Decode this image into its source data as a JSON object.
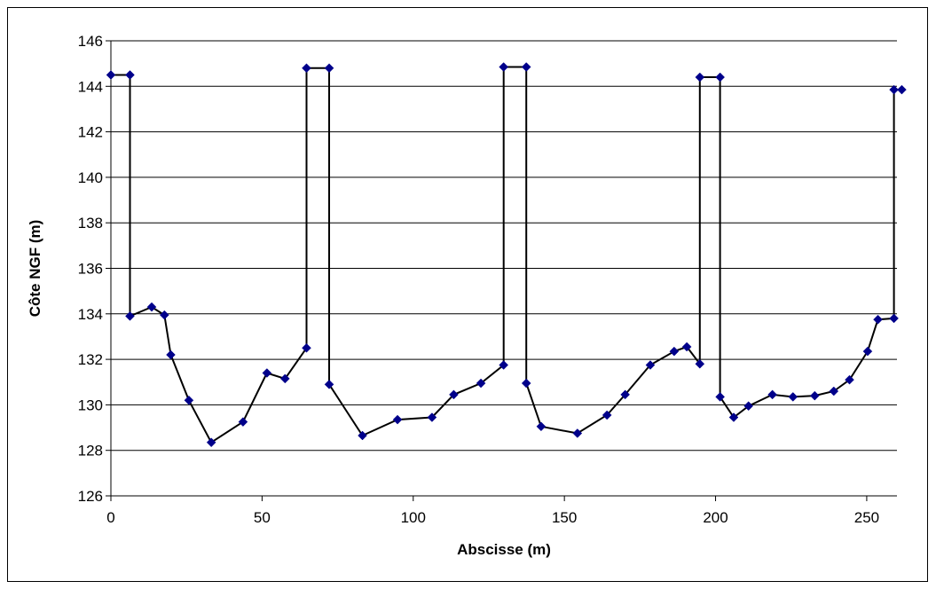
{
  "chart_data": {
    "type": "line",
    "title": "",
    "xlabel": "Abscisse (m)",
    "ylabel": "Côte NGF (m)",
    "xlim": [
      0,
      260
    ],
    "ylim": [
      126,
      146
    ],
    "xticks": [
      0,
      50,
      100,
      150,
      200,
      250
    ],
    "yticks": [
      126,
      128,
      130,
      132,
      134,
      136,
      138,
      140,
      142,
      144,
      146
    ],
    "grid": "horizontal",
    "legend": "none",
    "colors": {
      "marker": "#00008B",
      "line": "#000000",
      "grid": "#000000"
    },
    "series": [
      {
        "x": [
          0,
          6.3,
          6.3,
          13.5,
          17.7,
          19.8,
          25.8,
          33.2,
          43.7,
          51.6,
          57.6,
          64.7,
          64.7,
          72.2,
          72.2,
          83.2,
          94.8,
          106.2,
          113.4,
          122.4,
          129.9,
          129.9,
          137.4,
          137.4,
          142.3,
          154.3,
          164.1,
          170.1,
          178.4,
          186.3,
          190.5,
          194.8,
          194.8,
          201.5,
          201.5,
          206.0,
          210.9,
          218.8,
          225.6,
          232.8,
          239.1,
          244.3,
          250.3,
          253.7,
          259.0,
          259.0,
          261.6
        ],
        "y": [
          144.5,
          144.5,
          133.9,
          134.3,
          133.95,
          132.2,
          130.2,
          128.35,
          129.25,
          131.4,
          131.15,
          132.5,
          144.8,
          144.8,
          130.9,
          128.65,
          129.35,
          129.45,
          130.45,
          130.95,
          131.75,
          144.85,
          144.85,
          130.95,
          129.05,
          128.75,
          129.55,
          130.45,
          131.75,
          132.35,
          132.55,
          131.8,
          144.4,
          144.4,
          130.35,
          129.45,
          129.95,
          130.45,
          130.35,
          130.4,
          130.6,
          131.1,
          132.35,
          133.75,
          133.8,
          143.85,
          143.85
        ]
      }
    ]
  }
}
